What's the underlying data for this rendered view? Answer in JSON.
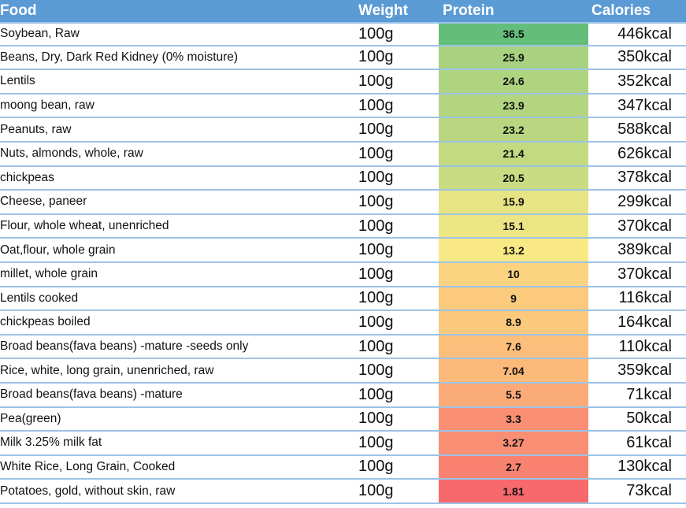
{
  "header": {
    "food": "Food",
    "weight": "Weight",
    "protein": "Protein",
    "calories": "Calories"
  },
  "rows": [
    {
      "food": "Soybean, Raw",
      "weight": "100g",
      "protein": "36.5",
      "calories": "446kcal",
      "color": "#63be7b"
    },
    {
      "food": "Beans, Dry, Dark Red Kidney (0% moisture)",
      "weight": "100g",
      "protein": "25.9",
      "calories": "350kcal",
      "color": "#a8d27f"
    },
    {
      "food": "Lentils",
      "weight": "100g",
      "protein": "24.6",
      "calories": "352kcal",
      "color": "#afd480"
    },
    {
      "food": "moong bean, raw",
      "weight": "100g",
      "protein": "23.9",
      "calories": "347kcal",
      "color": "#b3d580"
    },
    {
      "food": "Peanuts, raw",
      "weight": "100g",
      "protein": "23.2",
      "calories": "588kcal",
      "color": "#b8d780"
    },
    {
      "food": "Nuts, almonds, whole, raw",
      "weight": "100g",
      "protein": "21.4",
      "calories": "626kcal",
      "color": "#c3da81"
    },
    {
      "food": "chickpeas",
      "weight": "100g",
      "protein": "20.5",
      "calories": "378kcal",
      "color": "#c9dc81"
    },
    {
      "food": "Cheese, paneer",
      "weight": "100g",
      "protein": "15.9",
      "calories": "299kcal",
      "color": "#e6e483"
    },
    {
      "food": "Flour, whole wheat, unenriched",
      "weight": "100g",
      "protein": "15.1",
      "calories": "370kcal",
      "color": "#ebe683"
    },
    {
      "food": "Oat,flour, whole grain",
      "weight": "100g",
      "protein": "13.2",
      "calories": "389kcal",
      "color": "#f8e984"
    },
    {
      "food": "millet, whole grain",
      "weight": "100g",
      "protein": "10",
      "calories": "370kcal",
      "color": "#fbd27f"
    },
    {
      "food": "Lentils cooked",
      "weight": "100g",
      "protein": "9",
      "calories": "116kcal",
      "color": "#fbca7d"
    },
    {
      "food": "chickpeas boiled",
      "weight": "100g",
      "protein": "8.9",
      "calories": "164kcal",
      "color": "#fbc97d"
    },
    {
      "food": "Broad beans(fava beans) -mature -seeds only",
      "weight": "100g",
      "protein": "7.6",
      "calories": "110kcal",
      "color": "#fbbe7b"
    },
    {
      "food": "Rice, white, long grain, unenriched, raw",
      "weight": "100g",
      "protein": "7.04",
      "calories": "359kcal",
      "color": "#fbb97a"
    },
    {
      "food": "Broad beans(fava beans) -mature",
      "weight": "100g",
      "protein": "5.5",
      "calories": "71kcal",
      "color": "#faab78"
    },
    {
      "food": "Pea(green)",
      "weight": "100g",
      "protein": "3.3",
      "calories": "50kcal",
      "color": "#f98e74"
    },
    {
      "food": "Milk 3.25% milk fat",
      "weight": "100g",
      "protein": "3.27",
      "calories": "61kcal",
      "color": "#f98e74"
    },
    {
      "food": "White Rice, Long Grain, Cooked",
      "weight": "100g",
      "protein": "2.7",
      "calories": "130kcal",
      "color": "#f8826f"
    },
    {
      "food": "Potatoes, gold, without skin, raw",
      "weight": "100g",
      "protein": "1.81",
      "calories": "73kcal",
      "color": "#f8696b"
    }
  ]
}
